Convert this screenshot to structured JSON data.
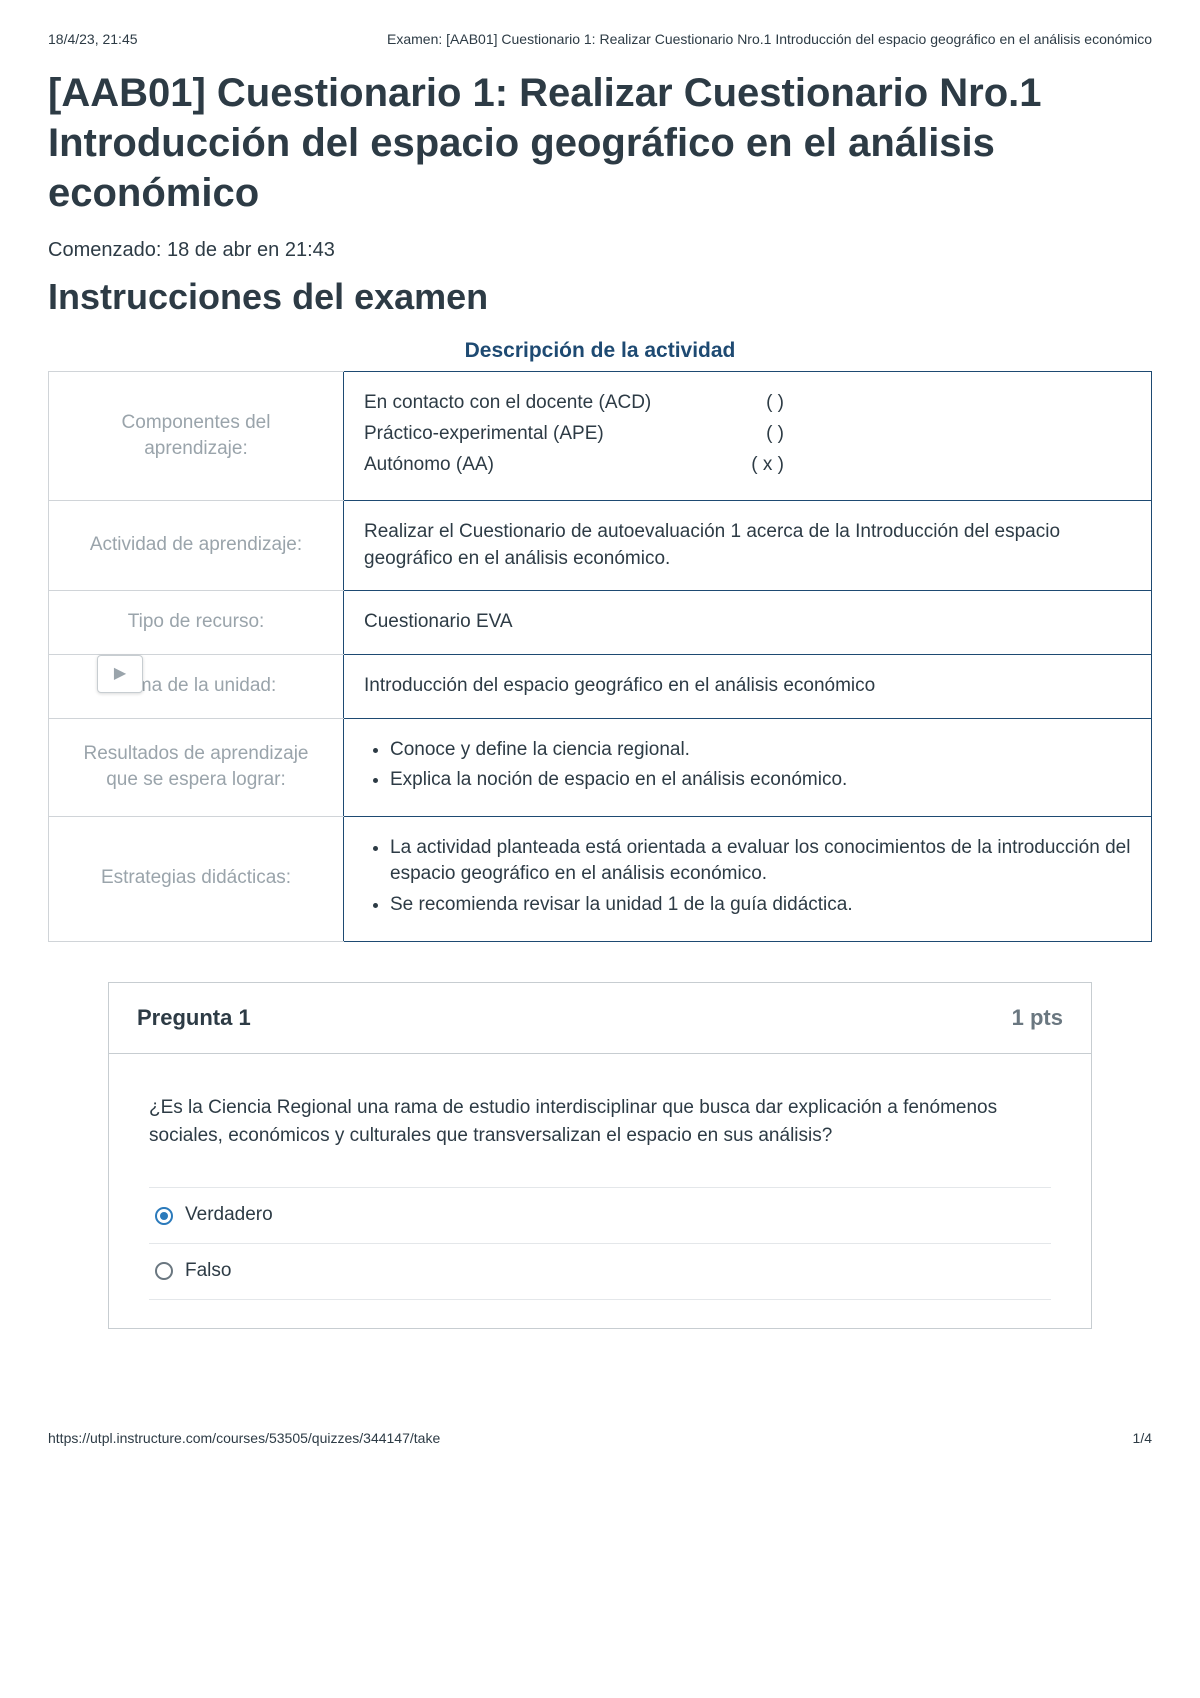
{
  "print_header": {
    "datetime": "18/4/23, 21:45",
    "doc_title": "Examen: [AAB01] Cuestionario 1: Realizar Cuestionario Nro.1 Introducción del espacio geográfico en el análisis económico"
  },
  "title": "[AAB01] Cuestionario 1: Realizar Cuestionario Nro.1 Introducción del espacio geográfico en el análisis económico",
  "started": "Comenzado: 18 de abr en 21:43",
  "instructions_heading": "Instrucciones del examen",
  "description_heading": "Descripción de la actividad",
  "rows": {
    "componentes": {
      "label": "Componentes del aprendizaje:",
      "items": [
        {
          "name": "En contacto con el docente (ACD)",
          "mark": "(     )"
        },
        {
          "name": "Práctico-experimental (APE)",
          "mark": "(     )"
        },
        {
          "name": "Autónomo (AA)",
          "mark": "(  x  )"
        }
      ]
    },
    "actividad": {
      "label": "Actividad de aprendizaje:",
      "value": "Realizar el Cuestionario de autoevaluación 1 acerca de la Introducción del espacio geográfico en el análisis económico."
    },
    "tipo": {
      "label": "Tipo de recurso:",
      "value": "Cuestionario EVA"
    },
    "tema": {
      "label": "Tema de la unidad:",
      "value": "Introducción del espacio geográfico en el análisis económico"
    },
    "resultados": {
      "label": "Resultados de aprendizaje que se espera lograr:",
      "items": [
        "Conoce y define la ciencia regional.",
        "Explica la noción de espacio en el análisis económico."
      ]
    },
    "estrategias": {
      "label": "Estrategias didácticas:",
      "items": [
        "La actividad planteada está orientada a evaluar los conocimientos de la introducción del espacio geográfico en el análisis económico.",
        "Se recomienda revisar la unidad 1 de la guía didáctica."
      ]
    }
  },
  "question": {
    "title": "Pregunta 1",
    "points": "1 pts",
    "text": "¿Es la Ciencia Regional una rama de estudio interdisciplinar que busca dar explicación a fenómenos sociales, económicos y culturales que transversalizan el espacio en sus análisis?",
    "options": [
      {
        "label": "Verdadero",
        "selected": true
      },
      {
        "label": "Falso",
        "selected": false
      }
    ]
  },
  "print_footer": {
    "url": "https://utpl.instructure.com/courses/53505/quizzes/344147/take",
    "page": "1/4"
  }
}
